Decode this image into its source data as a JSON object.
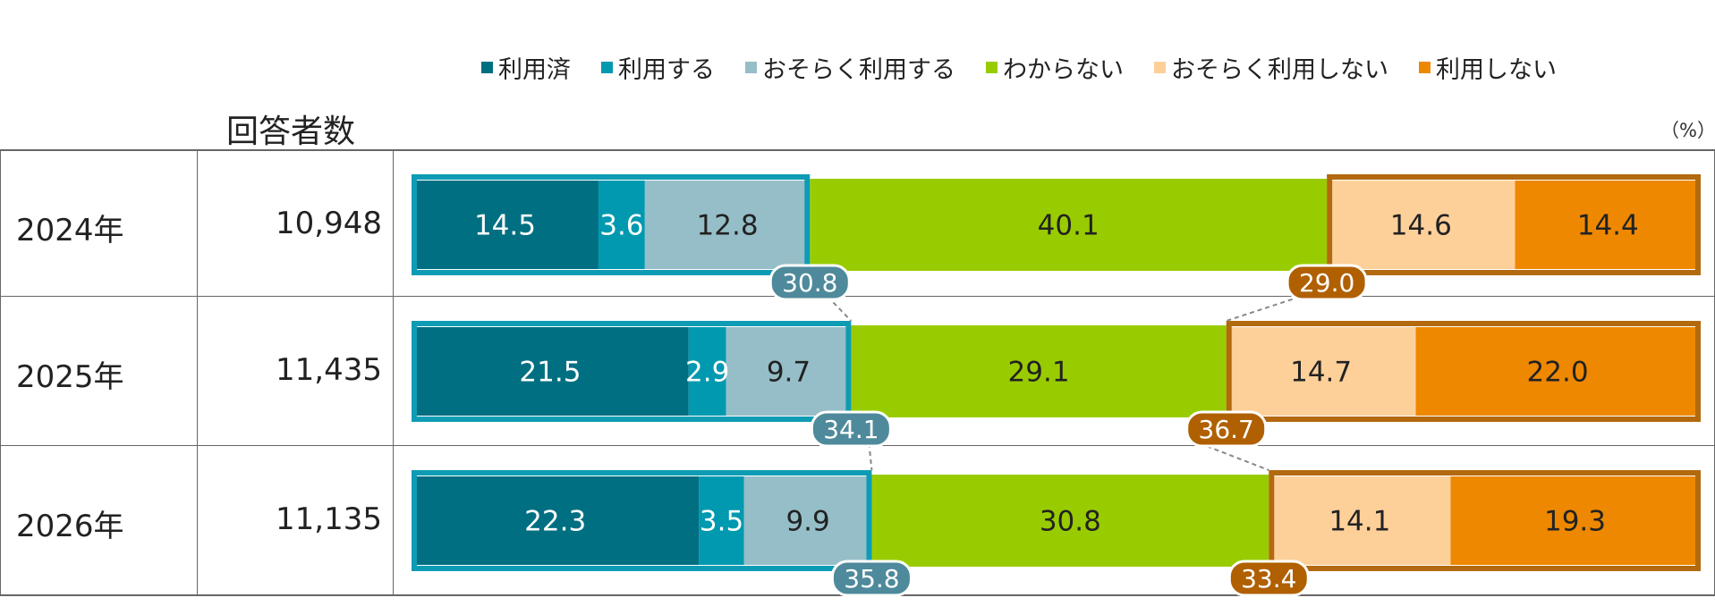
{
  "header": {
    "count_label": "回答者数",
    "unit": "（%）"
  },
  "colors": {
    "used": "#006f82",
    "will_use": "#0099b0",
    "probably_use": "#96bec8",
    "unknown": "#99cc00",
    "probably_not": "#fdd09a",
    "not_use": "#ee8800",
    "use_border": "#0e9cb4",
    "not_border": "#b3690d",
    "use_bubble": "#4e8a9b",
    "not_bubble": "#b06000"
  },
  "chart_data": {
    "type": "bar",
    "orientation": "horizontal-stacked-100",
    "categories": [
      "2024年",
      "2025年",
      "2026年"
    ],
    "respondents": [
      "10,948",
      "11,435",
      "11,135"
    ],
    "series": [
      {
        "name": "利用済",
        "values": [
          14.5,
          21.5,
          22.3
        ]
      },
      {
        "name": "利用する",
        "values": [
          3.6,
          2.9,
          3.5
        ]
      },
      {
        "name": "おそらく利用する",
        "values": [
          12.8,
          9.7,
          9.9
        ]
      },
      {
        "name": "わからない",
        "values": [
          40.1,
          29.1,
          30.8
        ]
      },
      {
        "name": "おそらく利用しない",
        "values": [
          14.6,
          14.7,
          14.1
        ]
      },
      {
        "name": "利用しない",
        "values": [
          14.4,
          22.0,
          19.3
        ]
      }
    ],
    "use_totals": [
      "30.8",
      "34.1",
      "35.8"
    ],
    "not_use_totals": [
      "29.0",
      "36.7",
      "33.4"
    ],
    "xlim": [
      0,
      100
    ],
    "legend": "top"
  }
}
